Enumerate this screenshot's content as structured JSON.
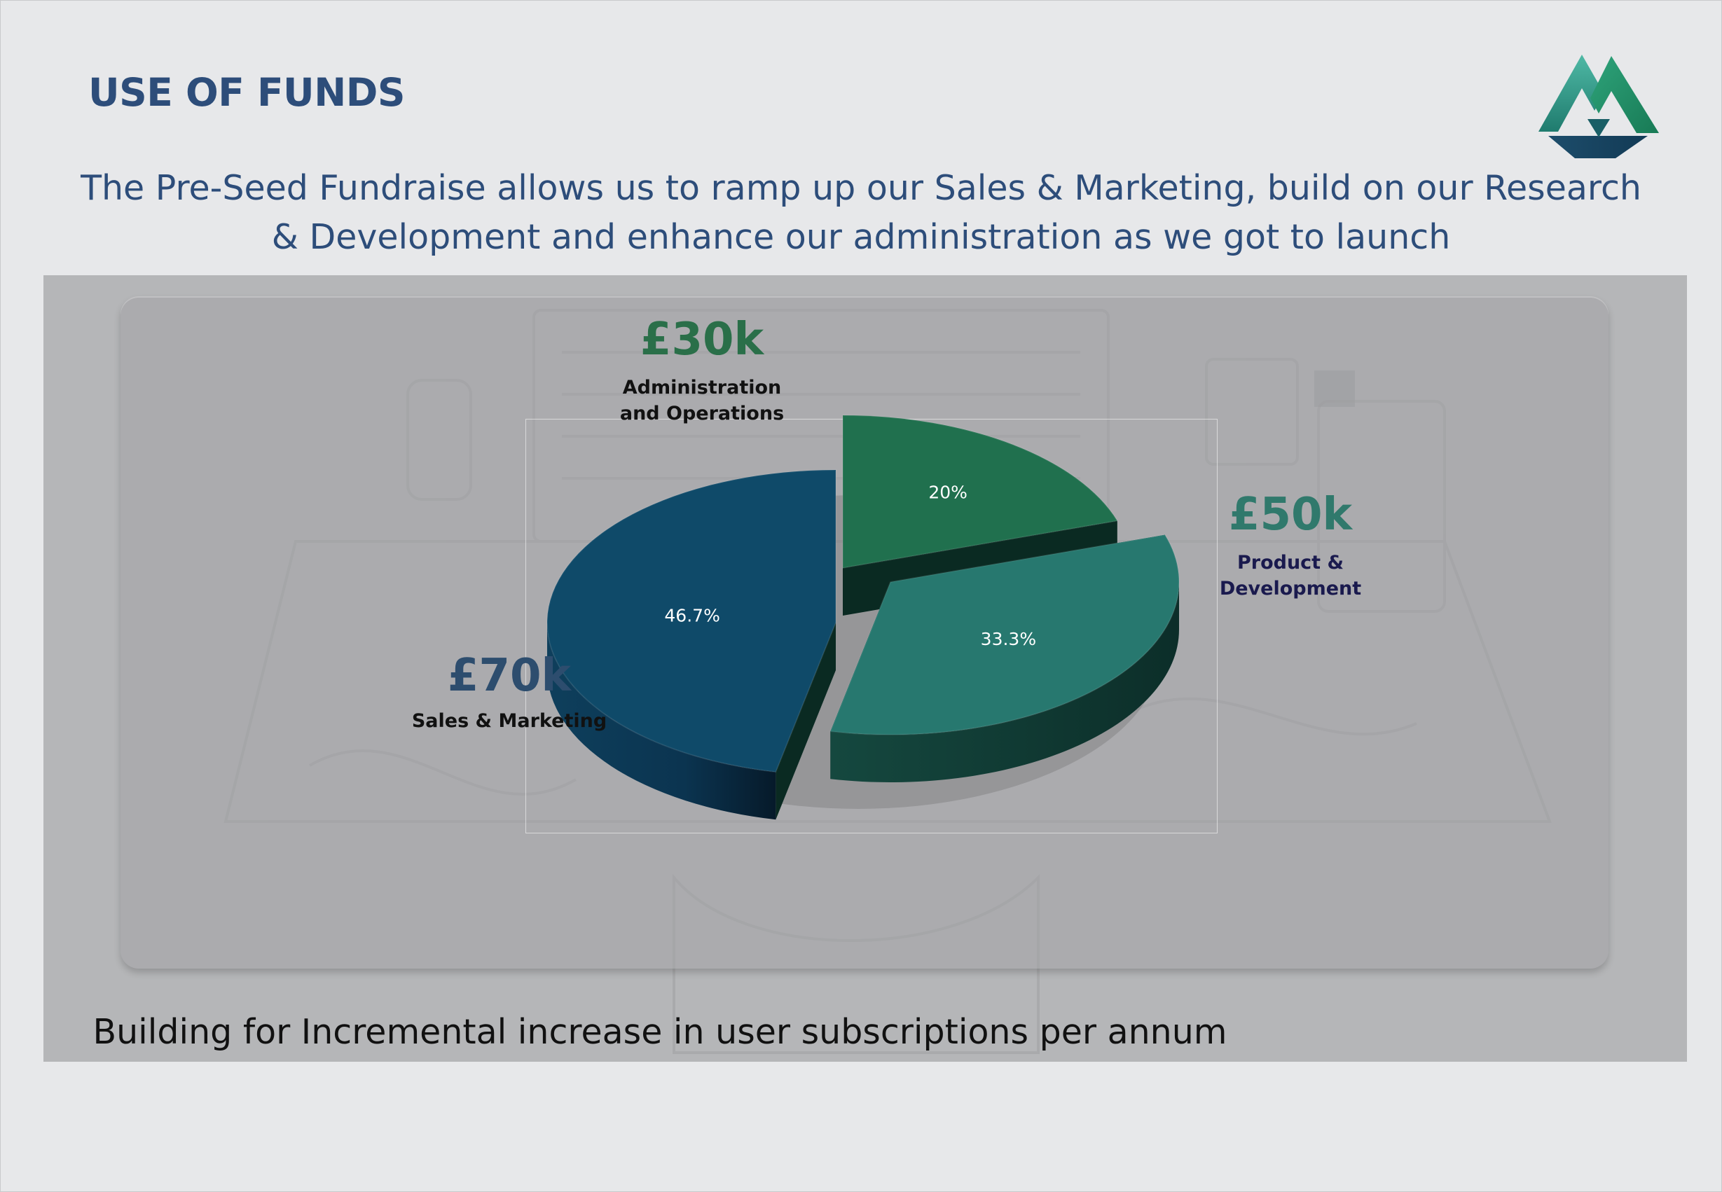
{
  "slide": {
    "title": "USE OF FUNDS",
    "subtitle": "The Pre-Seed Fundraise allows us to ramp up our Sales & Marketing, build on our Research & Development and enhance our administration as we got to launch",
    "footer": "Building for Incremental increase in user subscriptions per annum"
  },
  "chart_data": {
    "type": "pie",
    "style": "3d-exploded",
    "categories": [
      "Administration and Operations",
      "Product & Development",
      "Sales & Marketing"
    ],
    "values": [
      30,
      50,
      70
    ],
    "value_labels": [
      "£30k",
      "£50k",
      "£70k"
    ],
    "percent_labels": [
      "20%",
      "33.3%",
      "46.7%"
    ],
    "colors": [
      "#20704e",
      "#27786f",
      "#0f4a69"
    ],
    "amount_colors": [
      "#2a6f49",
      "#30796c",
      "#2d4d6e"
    ],
    "category_label_colors": [
      "#111111",
      "#1a1a4e",
      "#111111"
    ]
  }
}
